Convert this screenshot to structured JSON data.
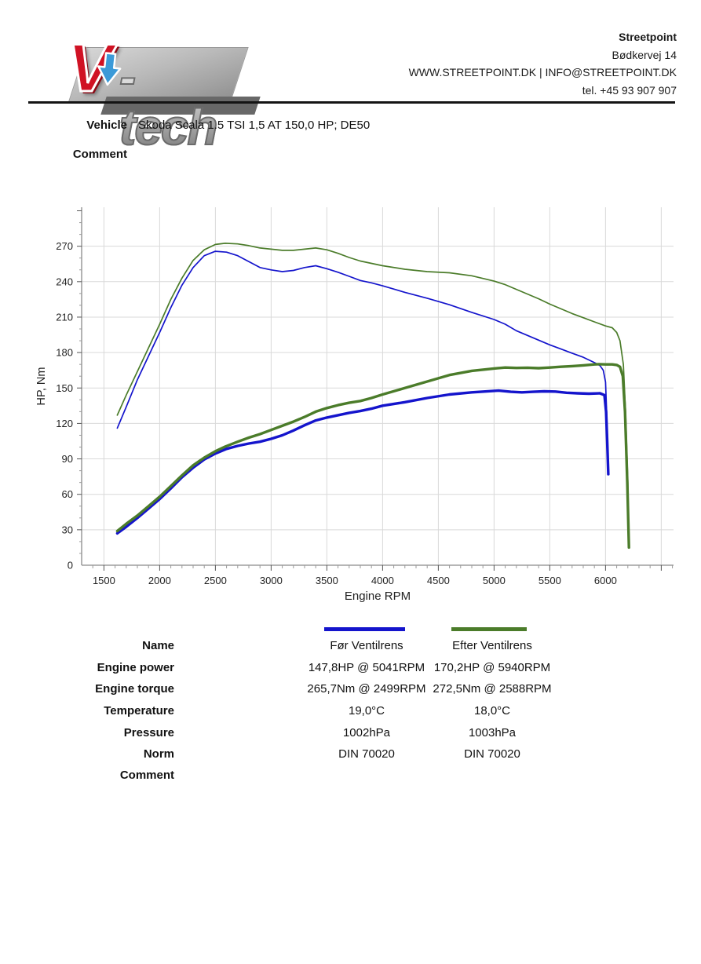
{
  "header": {
    "logo": {
      "v": "V",
      "tech": "-tech",
      "arrow_icon": "blue-down-arrow"
    },
    "company": {
      "name": "Streetpoint",
      "address": "Bødkervej 14",
      "web_email": "WWW.STREETPOINT.DK | INFO@STREETPOINT.DK",
      "phone": "tel. +45 93 907 907"
    }
  },
  "info": {
    "vehicle_label": "Vehicle",
    "vehicle_value": "Skoda Scala 1.5 TSI 1,5 AT 150,0 HP; DE50",
    "comment_label": "Comment",
    "comment_value": ""
  },
  "chart_data": {
    "type": "line",
    "title": "",
    "xlabel": "Engine RPM",
    "ylabel": "HP, Nm",
    "xlim": [
      1300,
      6610
    ],
    "ylim": [
      0,
      303
    ],
    "x_ticks": [
      1500,
      2000,
      2500,
      3000,
      3500,
      4000,
      4500,
      5000,
      5500,
      6000
    ],
    "y_ticks": [
      0,
      30,
      60,
      90,
      120,
      150,
      180,
      210,
      240,
      270
    ],
    "grid": true,
    "legend_position": "below",
    "series": [
      {
        "name": "Før Ventilrens - torque (Nm)",
        "color": "#1414cc",
        "width": 1.7,
        "points": [
          [
            1620,
            116
          ],
          [
            1700,
            134
          ],
          [
            1800,
            157
          ],
          [
            1900,
            177
          ],
          [
            2000,
            197
          ],
          [
            2100,
            218
          ],
          [
            2200,
            237
          ],
          [
            2300,
            252
          ],
          [
            2400,
            262
          ],
          [
            2499,
            265.7
          ],
          [
            2600,
            265
          ],
          [
            2700,
            262
          ],
          [
            2800,
            257
          ],
          [
            2900,
            252
          ],
          [
            3000,
            250
          ],
          [
            3100,
            248.5
          ],
          [
            3200,
            249.5
          ],
          [
            3300,
            252
          ],
          [
            3400,
            253.5
          ],
          [
            3500,
            251
          ],
          [
            3600,
            248
          ],
          [
            3700,
            244.5
          ],
          [
            3800,
            241
          ],
          [
            3900,
            239
          ],
          [
            4000,
            236.5
          ],
          [
            4200,
            231
          ],
          [
            4400,
            226
          ],
          [
            4600,
            220.5
          ],
          [
            4800,
            214
          ],
          [
            5000,
            208
          ],
          [
            5100,
            204
          ],
          [
            5200,
            198.5
          ],
          [
            5300,
            194.5
          ],
          [
            5400,
            190.5
          ],
          [
            5500,
            186.5
          ],
          [
            5600,
            183
          ],
          [
            5700,
            179.5
          ],
          [
            5800,
            176
          ],
          [
            5900,
            171.5
          ],
          [
            5950,
            169
          ],
          [
            5980,
            165
          ],
          [
            6000,
            155
          ],
          [
            6010,
            130
          ],
          [
            6020,
            100
          ],
          [
            6025,
            78
          ]
        ]
      },
      {
        "name": "Efter Ventilrens - torque (Nm)",
        "color": "#4b7c2a",
        "width": 1.7,
        "points": [
          [
            1620,
            127
          ],
          [
            1700,
            144
          ],
          [
            1800,
            164
          ],
          [
            1900,
            184
          ],
          [
            2000,
            204
          ],
          [
            2100,
            225
          ],
          [
            2200,
            243
          ],
          [
            2300,
            258
          ],
          [
            2400,
            267
          ],
          [
            2500,
            271.5
          ],
          [
            2588,
            272.5
          ],
          [
            2700,
            272
          ],
          [
            2800,
            270.5
          ],
          [
            2900,
            268.5
          ],
          [
            3000,
            267.5
          ],
          [
            3100,
            266.5
          ],
          [
            3200,
            266.5
          ],
          [
            3300,
            267.5
          ],
          [
            3400,
            268.5
          ],
          [
            3500,
            267
          ],
          [
            3600,
            264
          ],
          [
            3700,
            260.5
          ],
          [
            3800,
            257.5
          ],
          [
            3900,
            255.5
          ],
          [
            4000,
            253.5
          ],
          [
            4200,
            250.5
          ],
          [
            4400,
            248.5
          ],
          [
            4600,
            247.5
          ],
          [
            4800,
            245
          ],
          [
            5000,
            240.5
          ],
          [
            5100,
            237.5
          ],
          [
            5200,
            233.5
          ],
          [
            5300,
            229.5
          ],
          [
            5400,
            225.5
          ],
          [
            5500,
            221
          ],
          [
            5600,
            217
          ],
          [
            5700,
            213
          ],
          [
            5800,
            209.5
          ],
          [
            5900,
            206
          ],
          [
            6000,
            202.5
          ],
          [
            6060,
            201
          ],
          [
            6100,
            197
          ],
          [
            6130,
            190
          ],
          [
            6160,
            170
          ],
          [
            6180,
            130
          ],
          [
            6200,
            70
          ],
          [
            6210,
            17
          ]
        ]
      },
      {
        "name": "Før Ventilrens - power (HP)",
        "color": "#1414cc",
        "width": 3.4,
        "points": [
          [
            1620,
            27
          ],
          [
            1700,
            32.5
          ],
          [
            1800,
            40
          ],
          [
            1900,
            48
          ],
          [
            2000,
            56
          ],
          [
            2100,
            65
          ],
          [
            2200,
            74.5
          ],
          [
            2300,
            82.5
          ],
          [
            2400,
            89.5
          ],
          [
            2499,
            94.5
          ],
          [
            2600,
            98.5
          ],
          [
            2700,
            101
          ],
          [
            2800,
            103
          ],
          [
            2900,
            104.5
          ],
          [
            3000,
            107
          ],
          [
            3100,
            110
          ],
          [
            3200,
            114
          ],
          [
            3300,
            118.5
          ],
          [
            3400,
            122.5
          ],
          [
            3500,
            125
          ],
          [
            3600,
            127
          ],
          [
            3700,
            129
          ],
          [
            3800,
            130.5
          ],
          [
            3900,
            132.5
          ],
          [
            4000,
            135
          ],
          [
            4200,
            138
          ],
          [
            4400,
            141.5
          ],
          [
            4600,
            144.5
          ],
          [
            4800,
            146.3
          ],
          [
            5000,
            147.6
          ],
          [
            5041,
            147.8
          ],
          [
            5150,
            146.8
          ],
          [
            5250,
            146.3
          ],
          [
            5350,
            146.8
          ],
          [
            5450,
            147.2
          ],
          [
            5550,
            147
          ],
          [
            5650,
            146
          ],
          [
            5750,
            145.5
          ],
          [
            5850,
            145.2
          ],
          [
            5950,
            145.5
          ],
          [
            5990,
            144
          ],
          [
            6005,
            130
          ],
          [
            6015,
            105
          ],
          [
            6025,
            77
          ]
        ]
      },
      {
        "name": "Efter Ventilrens - power (HP)",
        "color": "#4b7c2a",
        "width": 3.4,
        "points": [
          [
            1620,
            29
          ],
          [
            1700,
            35
          ],
          [
            1800,
            42
          ],
          [
            1900,
            50
          ],
          [
            2000,
            58
          ],
          [
            2100,
            67
          ],
          [
            2200,
            76
          ],
          [
            2300,
            84.5
          ],
          [
            2400,
            91
          ],
          [
            2500,
            96.5
          ],
          [
            2588,
            100.4
          ],
          [
            2700,
            104.5
          ],
          [
            2800,
            108
          ],
          [
            2900,
            111
          ],
          [
            3000,
            114.5
          ],
          [
            3100,
            118
          ],
          [
            3200,
            121.5
          ],
          [
            3300,
            125.5
          ],
          [
            3400,
            130
          ],
          [
            3500,
            133
          ],
          [
            3600,
            135.5
          ],
          [
            3700,
            137.5
          ],
          [
            3800,
            139
          ],
          [
            3900,
            141.5
          ],
          [
            4000,
            144.5
          ],
          [
            4200,
            150
          ],
          [
            4400,
            155.5
          ],
          [
            4600,
            161
          ],
          [
            4800,
            164.5
          ],
          [
            5000,
            166.5
          ],
          [
            5100,
            167.3
          ],
          [
            5200,
            167
          ],
          [
            5300,
            167.2
          ],
          [
            5400,
            166.8
          ],
          [
            5500,
            167.3
          ],
          [
            5600,
            168
          ],
          [
            5700,
            168.5
          ],
          [
            5800,
            169.2
          ],
          [
            5900,
            170
          ],
          [
            5940,
            170.2
          ],
          [
            6000,
            170
          ],
          [
            6060,
            170
          ],
          [
            6100,
            169.5
          ],
          [
            6130,
            168
          ],
          [
            6155,
            160
          ],
          [
            6175,
            130
          ],
          [
            6195,
            70
          ],
          [
            6210,
            15
          ]
        ]
      }
    ]
  },
  "results_table": {
    "legend": {
      "col1_color": "#1414cc",
      "col2_color": "#4b7c2a"
    },
    "rows": [
      {
        "label": "Name",
        "col1": "Før Ventilrens",
        "col2": "Efter Ventilrens"
      },
      {
        "label": "Engine power",
        "col1": "147,8HP @ 5041RPM",
        "col2": "170,2HP @ 5940RPM"
      },
      {
        "label": "Engine torque",
        "col1": "265,7Nm @ 2499RPM",
        "col2": "272,5Nm @ 2588RPM"
      },
      {
        "label": "Temperature",
        "col1": "19,0°C",
        "col2": "18,0°C"
      },
      {
        "label": "Pressure",
        "col1": "1002hPa",
        "col2": "1003hPa"
      },
      {
        "label": "Norm",
        "col1": "DIN 70020",
        "col2": "DIN 70020"
      },
      {
        "label": "Comment",
        "col1": "",
        "col2": ""
      }
    ]
  }
}
